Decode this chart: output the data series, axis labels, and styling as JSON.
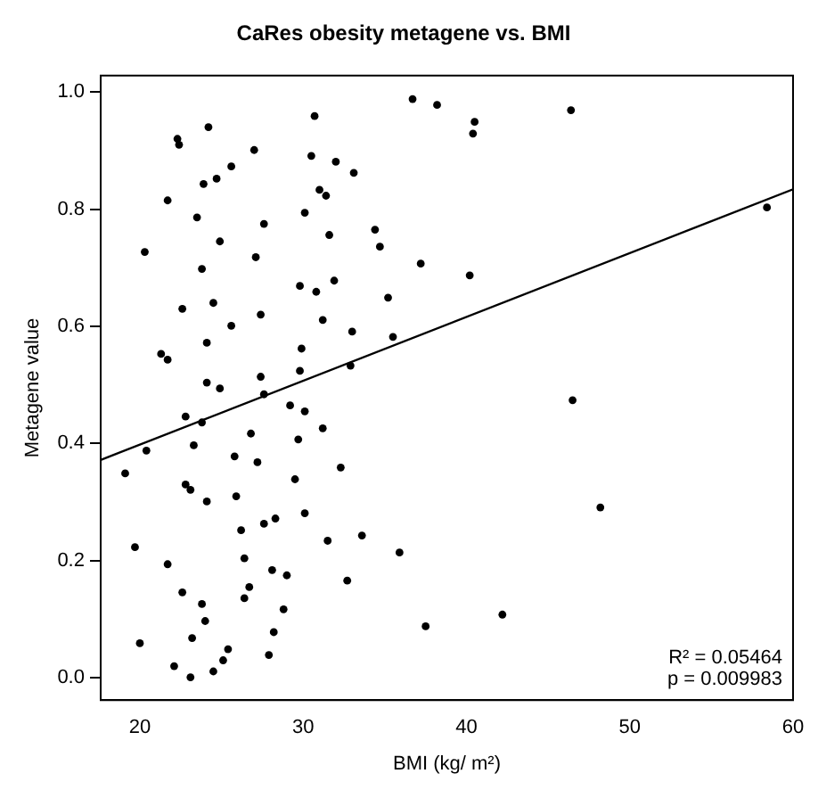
{
  "chart_data": {
    "type": "scatter",
    "title": "CaRes obesity metagene vs. BMI",
    "xlabel": "BMI (kg/ m²)",
    "ylabel": "Metagene value",
    "xlim": [
      17.6,
      60
    ],
    "xticks": [
      20,
      30,
      40,
      50,
      60
    ],
    "ylim": [
      -0.038,
      1.028
    ],
    "yticks": [
      {
        "value": 0,
        "label": "0.0"
      },
      {
        "value": 0.2,
        "label": "0.2"
      },
      {
        "value": 0.4,
        "label": "0.4"
      },
      {
        "value": 0.6,
        "label": "0.6"
      },
      {
        "value": 0.8,
        "label": "0.8"
      },
      {
        "value": 1,
        "label": "1.0"
      }
    ],
    "grid": false,
    "legend": false,
    "marker": "circle",
    "series": [
      {
        "color": "#000000",
        "x": [
          36.7,
          38.2,
          30.7,
          24.2,
          22.3,
          22.4,
          27.0,
          30.5,
          32.0,
          25.6,
          33.1,
          24.7,
          23.9,
          31.0,
          31.4,
          21.7,
          30.1,
          23.5,
          27.6,
          34.4,
          31.6,
          34.7,
          24.9,
          20.3,
          27.1,
          37.2,
          23.8,
          29.8,
          31.9,
          30.8,
          35.2,
          24.5,
          22.6,
          27.4,
          31.2,
          25.6,
          33.0,
          35.5,
          24.1,
          29.9,
          21.3,
          21.7,
          29.8,
          32.9,
          24.1,
          24.9,
          27.4,
          27.6,
          22.8,
          23.8,
          29.2,
          30.1,
          31.2,
          26.8,
          29.7,
          23.3,
          20.4,
          25.8,
          27.2,
          32.3,
          19.1,
          29.5,
          22.8,
          23.1,
          25.9,
          24.1,
          30.1,
          28.3,
          27.6,
          26.2,
          33.6,
          31.5,
          19.7,
          35.9,
          26.4,
          21.7,
          28.1,
          29.0,
          32.7,
          26.7,
          22.6,
          26.4,
          23.8,
          28.8,
          24.0,
          28.2,
          23.2,
          20.0,
          25.4,
          27.9,
          25.1,
          22.1,
          24.5,
          23.1,
          37.5,
          40.5,
          40.4,
          46.4,
          58.4,
          40.2,
          46.5,
          48.2,
          42.2
        ],
        "values": [
          0.988,
          0.978,
          0.959,
          0.94,
          0.92,
          0.91,
          0.901,
          0.891,
          0.881,
          0.873,
          0.862,
          0.852,
          0.843,
          0.833,
          0.823,
          0.815,
          0.794,
          0.786,
          0.775,
          0.765,
          0.756,
          0.736,
          0.745,
          0.727,
          0.718,
          0.707,
          0.698,
          0.669,
          0.678,
          0.659,
          0.649,
          0.64,
          0.63,
          0.62,
          0.611,
          0.601,
          0.591,
          0.582,
          0.572,
          0.562,
          0.553,
          0.543,
          0.524,
          0.533,
          0.504,
          0.494,
          0.514,
          0.484,
          0.446,
          0.436,
          0.465,
          0.455,
          0.426,
          0.417,
          0.407,
          0.397,
          0.388,
          0.378,
          0.368,
          0.359,
          0.349,
          0.339,
          0.33,
          0.321,
          0.31,
          0.301,
          0.281,
          0.272,
          0.263,
          0.252,
          0.243,
          0.234,
          0.223,
          0.214,
          0.204,
          0.194,
          0.184,
          0.175,
          0.166,
          0.155,
          0.146,
          0.136,
          0.126,
          0.117,
          0.097,
          0.078,
          0.068,
          0.059,
          0.049,
          0.039,
          0.03,
          0.02,
          0.011,
          0.001,
          0.088,
          0.949,
          0.929,
          0.969,
          0.803,
          0.687,
          0.474,
          0.291,
          0.108
        ]
      },
      {
        "type": "line",
        "marker": "none",
        "color": "#000000",
        "x": [
          17.6,
          60
        ],
        "values": [
          0.372,
          0.834
        ]
      }
    ],
    "annotations": [
      "R² = 0.05464",
      "p = 0.009983"
    ]
  }
}
